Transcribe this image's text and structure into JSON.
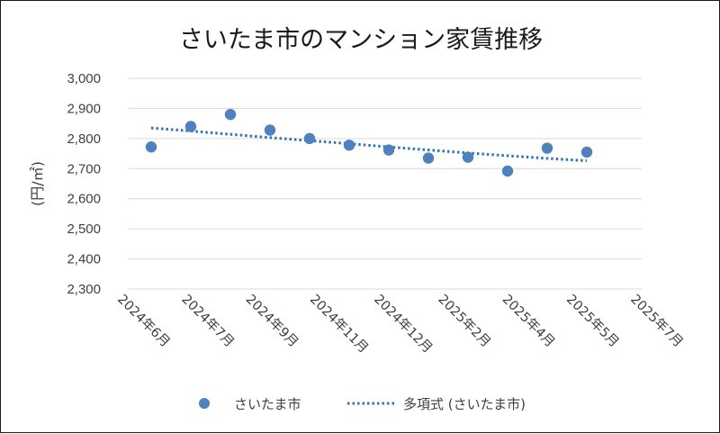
{
  "chart_data": {
    "type": "scatter",
    "title": "さいたま市のマンション家賃推移",
    "ylabel": "(円/㎡)",
    "xlabel": "",
    "ylim": [
      2300,
      3000
    ],
    "yticks": [
      2300,
      2400,
      2500,
      2600,
      2700,
      2800,
      2900,
      3000
    ],
    "ytick_labels": [
      "2,300",
      "2,400",
      "2,500",
      "2,600",
      "2,700",
      "2,800",
      "2,900",
      "3,000"
    ],
    "xtick_labels": [
      "2024年6月",
      "2024年7月",
      "2024年9月",
      "2024年11月",
      "2024年12月",
      "2025年2月",
      "2025年4月",
      "2025年5月",
      "2025年7月"
    ],
    "grid": "horizontal",
    "legend_position": "bottom",
    "series": [
      {
        "name": "さいたま市",
        "style": "marker",
        "color": "#4f81bd",
        "values": [
          2772,
          2840,
          2880,
          2828,
          2800,
          2778,
          2762,
          2735,
          2738,
          2692,
          2768,
          2755
        ]
      },
      {
        "name": "多項式 (さいたま市)",
        "style": "dotted-trendline",
        "color": "#2e75b6",
        "values": [
          2835,
          2825,
          2814,
          2803,
          2793,
          2783,
          2772,
          2762,
          2752,
          2743,
          2734,
          2726
        ]
      }
    ]
  }
}
